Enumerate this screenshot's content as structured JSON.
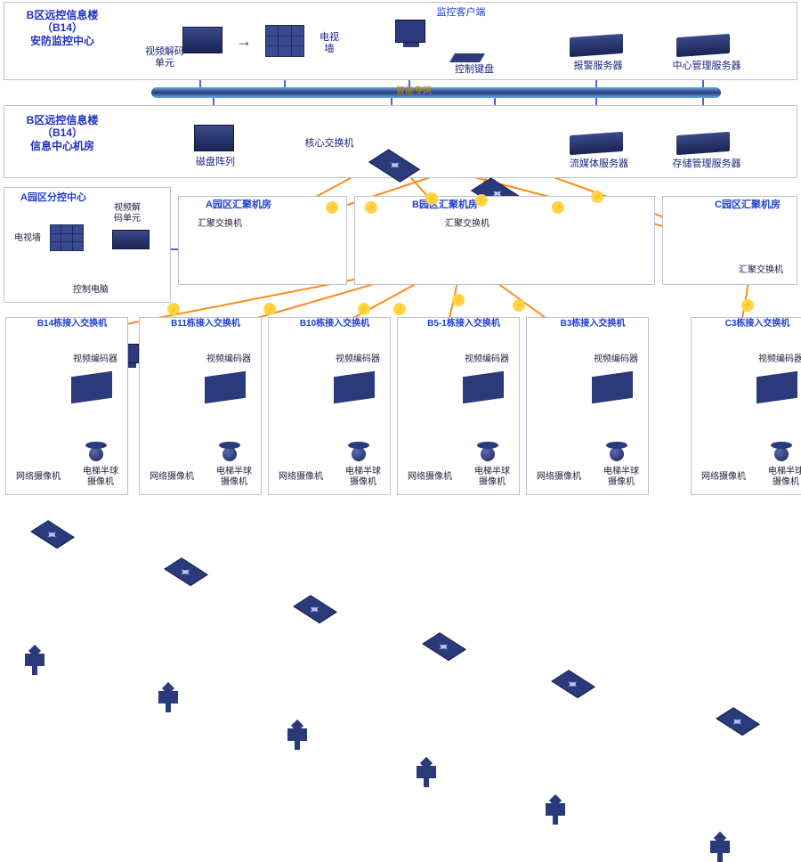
{
  "type": "network-topology",
  "palette": {
    "device_fill": "#2a3a7a",
    "device_dark": "#1a2555",
    "title_color": "#2030c0",
    "label_color": "#1a237e",
    "line_blue": "#4a68d8",
    "line_orange": "#ff8a1a",
    "lightning_bg": "#ffd54a",
    "box_border": "#c0c0d0"
  },
  "top": {
    "title_l1": "B区远控信息楼",
    "title_l2": "（B14）",
    "title_l3": "安防监控中心",
    "decode_unit": "视频解码\n单元",
    "tv_wall": "电视\n墙",
    "monitor_client": "监控客户端",
    "ctrl_keyboard": "控制键盘",
    "alarm_server": "报警服务器",
    "center_mgmt_server": "中心管理服务器",
    "bus_label": "智能专网"
  },
  "mid": {
    "title_l1": "B区远控信息楼",
    "title_l2": "（B14）",
    "title_l3": "信息中心机房",
    "disk_array": "磁盘阵列",
    "core_switch": "核心交换机",
    "stream_server": "流媒体服务器",
    "storage_server": "存储管理服务器"
  },
  "sub": {
    "title": "A园区分控中心",
    "tv_wall": "电视墙",
    "decode_unit": "视频解\n码单元",
    "ctrl_pc": "控制电脑"
  },
  "agg": {
    "a_title": "A园区汇聚机房",
    "b_title": "B园区汇聚机房",
    "c_title": "C园区汇聚机房",
    "switch_label": "汇聚交换机"
  },
  "access": {
    "buildings": [
      "B14栋接入交换机",
      "B11栋接入交换机",
      "B10栋接入交换机",
      "B5-1栋接入交换机",
      "B3栋接入交换机",
      "C3栋接入交换机"
    ],
    "encoder": "视频编码器",
    "ip_cam": "网络摄像机",
    "dome_cam": "电梯半球\n摄像机"
  }
}
